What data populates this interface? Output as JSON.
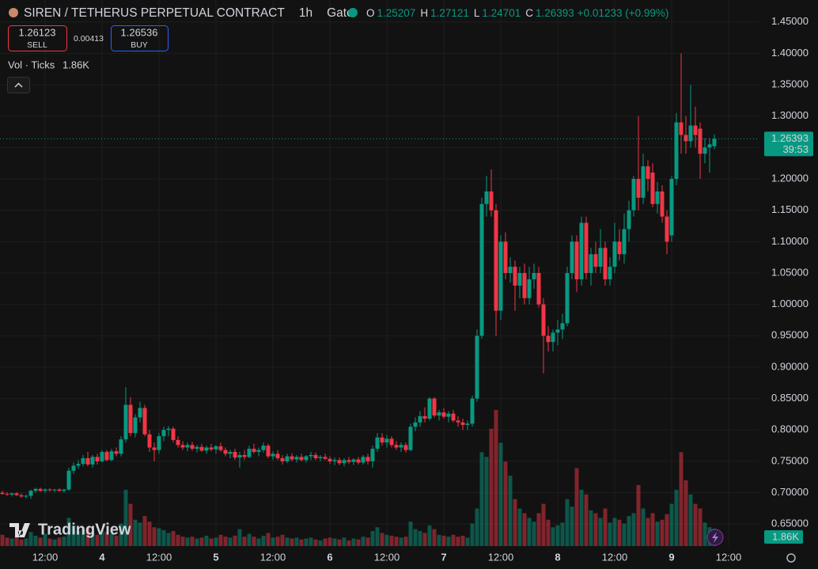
{
  "header": {
    "symbol": "SIREN / TETHERUS PERPETUAL CONTRACT",
    "interval": "1h",
    "exchange": "Gate",
    "ohlc_letters": [
      "O",
      "H",
      "L",
      "C"
    ],
    "change": "+0.01233 (+0.99%)",
    "sell_price": "1.26123",
    "sell_label": "SELL",
    "spread": "0.00413",
    "buy_price": "1.26536",
    "buy_label": "BUY",
    "volume_title": "Vol · Ticks",
    "countdown": "39:53",
    "watermark": "TradingView"
  },
  "chart_data": {
    "type": "candlestick",
    "up_color": "#089981",
    "down_color": "#f23645",
    "grid": true,
    "xlim": [
      -0.5,
      159.5
    ],
    "ylim": [
      0.615,
      1.485
    ],
    "yticks": [
      {
        "value": 0.65,
        "label": "0.65000"
      },
      {
        "value": 0.7,
        "label": "0.70000"
      },
      {
        "value": 0.75,
        "label": "0.75000"
      },
      {
        "value": 0.8,
        "label": "0.80000"
      },
      {
        "value": 0.85,
        "label": "0.85000"
      },
      {
        "value": 0.9,
        "label": "0.90000"
      },
      {
        "value": 0.95,
        "label": "0.95000"
      },
      {
        "value": 1.0,
        "label": "1.00000"
      },
      {
        "value": 1.05,
        "label": "1.05000"
      },
      {
        "value": 1.1,
        "label": "1.10000"
      },
      {
        "value": 1.15,
        "label": "1.15000"
      },
      {
        "value": 1.2,
        "label": "1.20000"
      },
      {
        "value": 1.25,
        "label": "1.25000"
      },
      {
        "value": 1.3,
        "label": "1.30000"
      },
      {
        "value": 1.35,
        "label": "1.35000"
      },
      {
        "value": 1.4,
        "label": "1.40000"
      },
      {
        "value": 1.45,
        "label": "1.45000"
      }
    ],
    "xticks": [
      {
        "value": 9,
        "label": "12:00"
      },
      {
        "value": 21,
        "label": "4"
      },
      {
        "value": 33,
        "label": "12:00"
      },
      {
        "value": 45,
        "label": "5"
      },
      {
        "value": 57,
        "label": "12:00"
      },
      {
        "value": 69,
        "label": "6"
      },
      {
        "value": 81,
        "label": "12:00"
      },
      {
        "value": 93,
        "label": "7"
      },
      {
        "value": 105,
        "label": "12:00"
      },
      {
        "value": 117,
        "label": "8"
      },
      {
        "value": 129,
        "label": "12:00"
      },
      {
        "value": 141,
        "label": "9"
      },
      {
        "value": 153,
        "label": "12:00"
      }
    ],
    "ohlc": [
      [
        0.7,
        0.703,
        0.697,
        0.698
      ],
      [
        0.698,
        0.701,
        0.695,
        0.697
      ],
      [
        0.697,
        0.7,
        0.694,
        0.699
      ],
      [
        0.699,
        0.701,
        0.695,
        0.696
      ],
      [
        0.696,
        0.699,
        0.692,
        0.694
      ],
      [
        0.694,
        0.697,
        0.691,
        0.695
      ],
      [
        0.695,
        0.705,
        0.69,
        0.703
      ],
      [
        0.703,
        0.708,
        0.7,
        0.706
      ],
      [
        0.706,
        0.708,
        0.701,
        0.703
      ],
      [
        0.703,
        0.707,
        0.7,
        0.705
      ],
      [
        0.705,
        0.707,
        0.702,
        0.704
      ],
      [
        0.704,
        0.706,
        0.701,
        0.705
      ],
      [
        0.705,
        0.707,
        0.702,
        0.703
      ],
      [
        0.703,
        0.706,
        0.7,
        0.705
      ],
      [
        0.705,
        0.74,
        0.703,
        0.735
      ],
      [
        0.735,
        0.748,
        0.73,
        0.743
      ],
      [
        0.743,
        0.752,
        0.738,
        0.746
      ],
      [
        0.746,
        0.76,
        0.742,
        0.755
      ],
      [
        0.755,
        0.765,
        0.742,
        0.745
      ],
      [
        0.745,
        0.76,
        0.74,
        0.757
      ],
      [
        0.757,
        0.762,
        0.745,
        0.75
      ],
      [
        0.75,
        0.768,
        0.748,
        0.765
      ],
      [
        0.765,
        0.768,
        0.75,
        0.752
      ],
      [
        0.752,
        0.77,
        0.75,
        0.766
      ],
      [
        0.766,
        0.772,
        0.758,
        0.762
      ],
      [
        0.762,
        0.79,
        0.758,
        0.785
      ],
      [
        0.785,
        0.868,
        0.78,
        0.84
      ],
      [
        0.84,
        0.852,
        0.79,
        0.795
      ],
      [
        0.795,
        0.825,
        0.788,
        0.82
      ],
      [
        0.82,
        0.845,
        0.812,
        0.835
      ],
      [
        0.835,
        0.84,
        0.79,
        0.793
      ],
      [
        0.793,
        0.8,
        0.765,
        0.772
      ],
      [
        0.772,
        0.78,
        0.75,
        0.768
      ],
      [
        0.768,
        0.795,
        0.762,
        0.79
      ],
      [
        0.79,
        0.805,
        0.782,
        0.8
      ],
      [
        0.8,
        0.806,
        0.79,
        0.802
      ],
      [
        0.802,
        0.805,
        0.78,
        0.784
      ],
      [
        0.784,
        0.79,
        0.772,
        0.776
      ],
      [
        0.776,
        0.782,
        0.768,
        0.772
      ],
      [
        0.772,
        0.78,
        0.766,
        0.776
      ],
      [
        0.776,
        0.781,
        0.767,
        0.77
      ],
      [
        0.77,
        0.776,
        0.764,
        0.773
      ],
      [
        0.773,
        0.778,
        0.765,
        0.767
      ],
      [
        0.767,
        0.775,
        0.762,
        0.772
      ],
      [
        0.772,
        0.778,
        0.766,
        0.769
      ],
      [
        0.769,
        0.776,
        0.762,
        0.774
      ],
      [
        0.774,
        0.78,
        0.765,
        0.768
      ],
      [
        0.768,
        0.772,
        0.758,
        0.762
      ],
      [
        0.762,
        0.768,
        0.755,
        0.765
      ],
      [
        0.765,
        0.77,
        0.752,
        0.756
      ],
      [
        0.756,
        0.765,
        0.74,
        0.76
      ],
      [
        0.76,
        0.768,
        0.752,
        0.757
      ],
      [
        0.757,
        0.775,
        0.755,
        0.77
      ],
      [
        0.77,
        0.778,
        0.762,
        0.765
      ],
      [
        0.765,
        0.772,
        0.758,
        0.768
      ],
      [
        0.768,
        0.78,
        0.764,
        0.775
      ],
      [
        0.775,
        0.778,
        0.755,
        0.758
      ],
      [
        0.758,
        0.766,
        0.752,
        0.762
      ],
      [
        0.762,
        0.768,
        0.752,
        0.755
      ],
      [
        0.755,
        0.76,
        0.745,
        0.75
      ],
      [
        0.75,
        0.762,
        0.747,
        0.758
      ],
      [
        0.758,
        0.763,
        0.75,
        0.753
      ],
      [
        0.753,
        0.76,
        0.748,
        0.757
      ],
      [
        0.757,
        0.762,
        0.75,
        0.752
      ],
      [
        0.752,
        0.76,
        0.748,
        0.758
      ],
      [
        0.758,
        0.765,
        0.752,
        0.76
      ],
      [
        0.76,
        0.764,
        0.752,
        0.755
      ],
      [
        0.755,
        0.76,
        0.75,
        0.757
      ],
      [
        0.757,
        0.762,
        0.752,
        0.754
      ],
      [
        0.754,
        0.758,
        0.746,
        0.75
      ],
      [
        0.75,
        0.756,
        0.744,
        0.752
      ],
      [
        0.752,
        0.756,
        0.744,
        0.747
      ],
      [
        0.747,
        0.755,
        0.742,
        0.752
      ],
      [
        0.752,
        0.757,
        0.746,
        0.749
      ],
      [
        0.749,
        0.755,
        0.744,
        0.753
      ],
      [
        0.753,
        0.757,
        0.745,
        0.748
      ],
      [
        0.748,
        0.76,
        0.745,
        0.757
      ],
      [
        0.757,
        0.762,
        0.745,
        0.75
      ],
      [
        0.75,
        0.775,
        0.74,
        0.77
      ],
      [
        0.77,
        0.795,
        0.765,
        0.788
      ],
      [
        0.788,
        0.795,
        0.775,
        0.78
      ],
      [
        0.78,
        0.792,
        0.772,
        0.786
      ],
      [
        0.786,
        0.79,
        0.772,
        0.776
      ],
      [
        0.776,
        0.782,
        0.768,
        0.772
      ],
      [
        0.772,
        0.78,
        0.765,
        0.776
      ],
      [
        0.776,
        0.78,
        0.764,
        0.768
      ],
      [
        0.768,
        0.81,
        0.766,
        0.805
      ],
      [
        0.805,
        0.82,
        0.798,
        0.812
      ],
      [
        0.812,
        0.83,
        0.805,
        0.822
      ],
      [
        0.822,
        0.836,
        0.812,
        0.818
      ],
      [
        0.818,
        0.852,
        0.815,
        0.85
      ],
      [
        0.85,
        0.852,
        0.82,
        0.823
      ],
      [
        0.823,
        0.832,
        0.815,
        0.828
      ],
      [
        0.828,
        0.835,
        0.818,
        0.821
      ],
      [
        0.821,
        0.83,
        0.812,
        0.826
      ],
      [
        0.826,
        0.832,
        0.812,
        0.815
      ],
      [
        0.815,
        0.822,
        0.805,
        0.812
      ],
      [
        0.812,
        0.818,
        0.8,
        0.808
      ],
      [
        0.808,
        0.815,
        0.8,
        0.81
      ],
      [
        0.81,
        0.855,
        0.805,
        0.85
      ],
      [
        0.85,
        0.96,
        0.845,
        0.95
      ],
      [
        0.95,
        1.17,
        0.945,
        1.16
      ],
      [
        1.16,
        1.205,
        1.14,
        1.18
      ],
      [
        1.18,
        1.215,
        1.14,
        1.15
      ],
      [
        1.15,
        1.16,
        0.95,
        0.99
      ],
      [
        0.99,
        1.11,
        0.975,
        1.1
      ],
      [
        1.1,
        1.115,
        1.04,
        1.05
      ],
      [
        1.05,
        1.075,
        1.035,
        1.06
      ],
      [
        1.06,
        1.07,
        0.99,
        1.03
      ],
      [
        1.03,
        1.06,
        1.01,
        1.05
      ],
      [
        1.05,
        1.065,
        1.0,
        1.01
      ],
      [
        1.01,
        1.06,
        1.0,
        1.04
      ],
      [
        1.04,
        1.065,
        1.025,
        1.05
      ],
      [
        1.05,
        1.06,
        0.995,
        1.0
      ],
      [
        1.0,
        1.01,
        0.89,
        0.95
      ],
      [
        0.95,
        0.965,
        0.925,
        0.94
      ],
      [
        0.94,
        0.96,
        0.925,
        0.955
      ],
      [
        0.955,
        0.975,
        0.935,
        0.96
      ],
      [
        0.96,
        0.985,
        0.945,
        0.97
      ],
      [
        0.97,
        1.06,
        0.965,
        1.05
      ],
      [
        1.05,
        1.11,
        1.04,
        1.1
      ],
      [
        1.1,
        1.11,
        1.02,
        1.04
      ],
      [
        1.04,
        1.14,
        1.03,
        1.13
      ],
      [
        1.13,
        1.14,
        1.04,
        1.05
      ],
      [
        1.05,
        1.09,
        1.03,
        1.08
      ],
      [
        1.08,
        1.1,
        1.05,
        1.06
      ],
      [
        1.06,
        1.12,
        1.05,
        1.09
      ],
      [
        1.09,
        1.1,
        1.03,
        1.04
      ],
      [
        1.04,
        1.075,
        1.03,
        1.06
      ],
      [
        1.06,
        1.13,
        1.05,
        1.1
      ],
      [
        1.1,
        1.12,
        1.07,
        1.08
      ],
      [
        1.08,
        1.145,
        1.065,
        1.12
      ],
      [
        1.12,
        1.165,
        1.1,
        1.15
      ],
      [
        1.15,
        1.205,
        1.14,
        1.2
      ],
      [
        1.2,
        1.3,
        1.15,
        1.17
      ],
      [
        1.17,
        1.24,
        1.16,
        1.22
      ],
      [
        1.22,
        1.23,
        1.18,
        1.2
      ],
      [
        1.21,
        1.225,
        1.155,
        1.16
      ],
      [
        1.16,
        1.195,
        1.145,
        1.18
      ],
      [
        1.18,
        1.19,
        1.13,
        1.14
      ],
      [
        1.14,
        1.15,
        1.08,
        1.1
      ],
      [
        1.11,
        1.205,
        1.1,
        1.2
      ],
      [
        1.2,
        1.305,
        1.19,
        1.29
      ],
      [
        1.29,
        1.4,
        1.24,
        1.27
      ],
      [
        1.27,
        1.3,
        1.24,
        1.26
      ],
      [
        1.26,
        1.35,
        1.25,
        1.285
      ],
      [
        1.285,
        1.315,
        1.25,
        1.27
      ],
      [
        1.28,
        1.29,
        1.2,
        1.24
      ],
      [
        1.24,
        1.265,
        1.225,
        1.25
      ],
      [
        1.25,
        1.265,
        1.21,
        1.255
      ],
      [
        1.25207,
        1.27121,
        1.24701,
        1.26393
      ]
    ],
    "volume": {
      "lim": [
        0,
        14.5
      ],
      "values": [
        1.2,
        0.9,
        0.8,
        1.0,
        0.7,
        0.8,
        1.5,
        1.1,
        0.9,
        1.3,
        0.8,
        0.7,
        0.9,
        1.0,
        3.0,
        2.2,
        1.6,
        1.8,
        2.0,
        1.4,
        1.2,
        1.7,
        1.5,
        1.3,
        1.1,
        2.4,
        6.0,
        4.5,
        2.8,
        2.5,
        3.2,
        2.6,
        2.0,
        1.9,
        1.7,
        1.4,
        1.6,
        1.2,
        1.0,
        0.9,
        1.0,
        0.8,
        0.9,
        1.1,
        0.8,
        0.9,
        1.2,
        1.0,
        0.9,
        1.1,
        1.8,
        1.0,
        1.3,
        1.0,
        0.8,
        1.1,
        1.4,
        0.9,
        1.0,
        1.2,
        0.9,
        0.8,
        0.9,
        0.7,
        0.8,
        0.9,
        0.7,
        0.6,
        0.8,
        0.9,
        0.8,
        0.7,
        0.9,
        0.6,
        0.8,
        0.7,
        1.0,
        0.9,
        1.6,
        2.0,
        1.4,
        1.2,
        1.1,
        1.0,
        0.9,
        1.0,
        2.6,
        1.8,
        1.6,
        1.4,
        2.2,
        1.8,
        1.2,
        1.1,
        1.0,
        1.2,
        1.0,
        1.1,
        0.9,
        2.4,
        4.0,
        10.0,
        9.5,
        12.5,
        14.5,
        11.0,
        9.0,
        7.5,
        5.0,
        4.0,
        3.5,
        3.0,
        2.6,
        3.5,
        4.5,
        2.8,
        2.0,
        2.2,
        2.5,
        5.0,
        4.2,
        8.3,
        6.0,
        5.5,
        3.8,
        3.5,
        3.0,
        4.0,
        2.5,
        3.0,
        2.8,
        2.4,
        3.2,
        3.5,
        6.5,
        4.0,
        3.0,
        3.5,
        2.6,
        2.8,
        3.4,
        4.5,
        6.0,
        10.0,
        7.0,
        5.5,
        4.5,
        4.0,
        2.5,
        2.0,
        1.86
      ],
      "last_label": "1.86K"
    }
  }
}
